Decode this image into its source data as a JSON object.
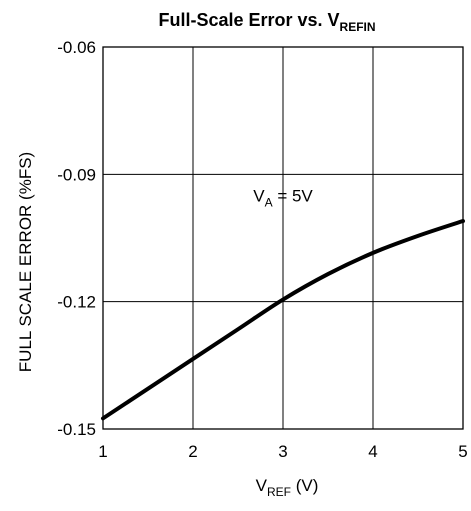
{
  "chart_data": {
    "type": "line",
    "title": {
      "main": "Full-Scale Error vs. V",
      "sub": "REFIN"
    },
    "xlabel": {
      "main": "V",
      "sub": "REF",
      "rest": " (V)"
    },
    "ylabel": "FULL SCALE ERROR (%FS)",
    "xlim": [
      1,
      5
    ],
    "ylim": [
      -0.15,
      -0.06
    ],
    "x_ticks": [
      1,
      2,
      3,
      4,
      5
    ],
    "x_tick_labels": [
      "1",
      "2",
      "3",
      "4",
      "5"
    ],
    "y_ticks": [
      -0.06,
      -0.09,
      -0.12,
      -0.15
    ],
    "y_tick_labels": [
      "-0.06",
      "-0.09",
      "-0.12",
      "-0.15"
    ],
    "grid": true,
    "annotation": {
      "main": "V",
      "sub": "A",
      "rest": " = 5V",
      "x": 3.0,
      "y": -0.095
    },
    "series": [
      {
        "x": [
          1.0,
          1.5,
          2.0,
          2.5,
          3.0,
          3.5,
          4.0,
          4.5,
          5.0
        ],
        "y": [
          -0.1475,
          -0.1405,
          -0.1335,
          -0.1265,
          -0.1195,
          -0.1135,
          -0.1085,
          -0.1045,
          -0.101
        ],
        "color": "#000000"
      }
    ]
  }
}
